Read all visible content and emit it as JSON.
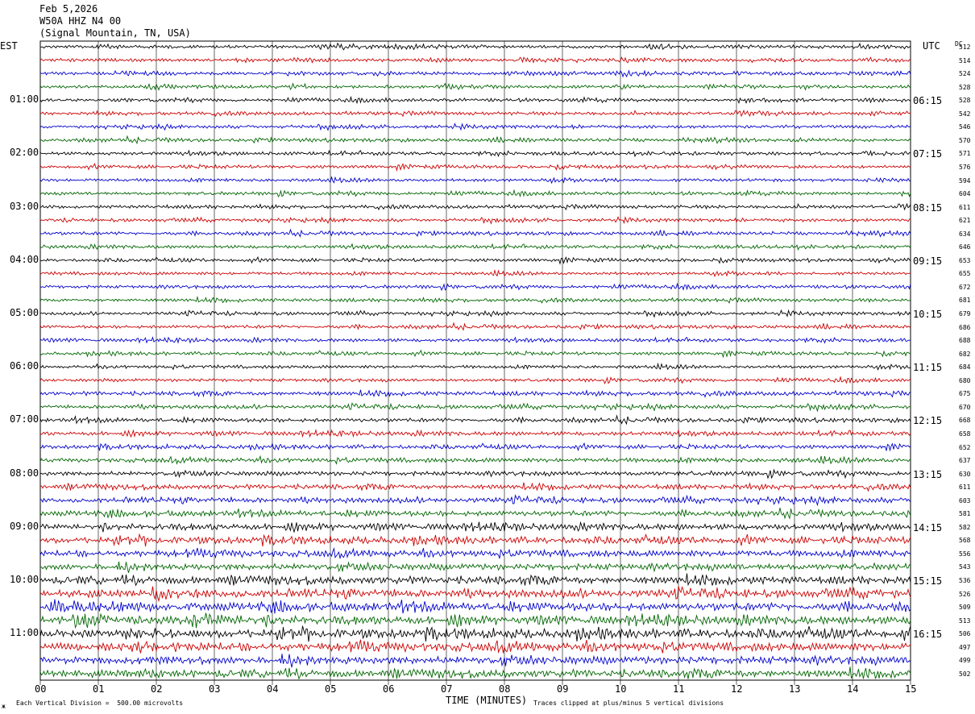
{
  "header": {
    "date": "Feb 5,2026",
    "station": "W50A HHZ N4 00",
    "location": "(Signal Mountain, TN, USA)"
  },
  "left_axis_title": "EST",
  "right_axis_title": "UTC",
  "dc_title": "DC",
  "footer": {
    "scale_note": "Each Vertical Division =  500.00 microvolts",
    "clip_note": "Traces clipped at plus/minus 5 vertical divisions",
    "corner_mark": "ж"
  },
  "colors": {
    "trace_cycle": [
      "#000000",
      "#cc0000",
      "#0000cc",
      "#006600"
    ],
    "grid": "#000000"
  },
  "chart_data": {
    "type": "line",
    "title": "W50A HHZ N4 00",
    "xlabel": "TIME (MINUTES)",
    "x_ticks": [
      "00",
      "01",
      "02",
      "03",
      "04",
      "05",
      "06",
      "07",
      "08",
      "09",
      "10",
      "11",
      "12",
      "13",
      "14",
      "15"
    ],
    "xlim": [
      0,
      15
    ],
    "left_time_labels": [
      {
        "row": 4,
        "label": "01:00"
      },
      {
        "row": 8,
        "label": "02:00"
      },
      {
        "row": 12,
        "label": "03:00"
      },
      {
        "row": 16,
        "label": "04:00"
      },
      {
        "row": 20,
        "label": "05:00"
      },
      {
        "row": 24,
        "label": "06:00"
      },
      {
        "row": 28,
        "label": "07:00"
      },
      {
        "row": 32,
        "label": "08:00"
      },
      {
        "row": 36,
        "label": "09:00"
      },
      {
        "row": 40,
        "label": "10:00"
      },
      {
        "row": 44,
        "label": "11:00"
      }
    ],
    "right_time_labels": [
      {
        "row": 4,
        "label": "06:15"
      },
      {
        "row": 8,
        "label": "07:15"
      },
      {
        "row": 12,
        "label": "08:15"
      },
      {
        "row": 16,
        "label": "09:15"
      },
      {
        "row": 20,
        "label": "10:15"
      },
      {
        "row": 24,
        "label": "11:15"
      },
      {
        "row": 28,
        "label": "12:15"
      },
      {
        "row": 32,
        "label": "13:15"
      },
      {
        "row": 36,
        "label": "14:15"
      },
      {
        "row": 40,
        "label": "15:15"
      },
      {
        "row": 44,
        "label": "16:15"
      }
    ],
    "dc_offsets": [
      512,
      514,
      524,
      528,
      528,
      542,
      546,
      570,
      571,
      576,
      594,
      604,
      611,
      621,
      634,
      646,
      653,
      655,
      672,
      681,
      679,
      686,
      688,
      682,
      684,
      680,
      675,
      670,
      668,
      658,
      652,
      637,
      630,
      611,
      603,
      581,
      582,
      568,
      556,
      543,
      536,
      526,
      509,
      513,
      506,
      497,
      499,
      502
    ],
    "trace_amplitude_level": [
      0.25,
      0.25,
      0.25,
      0.25,
      0.25,
      0.25,
      0.25,
      0.25,
      0.25,
      0.25,
      0.25,
      0.25,
      0.25,
      0.25,
      0.25,
      0.25,
      0.25,
      0.25,
      0.25,
      0.25,
      0.25,
      0.25,
      0.25,
      0.25,
      0.25,
      0.25,
      0.3,
      0.3,
      0.3,
      0.3,
      0.3,
      0.35,
      0.35,
      0.35,
      0.4,
      0.4,
      0.45,
      0.5,
      0.5,
      0.5,
      0.55,
      0.6,
      0.6,
      0.6,
      0.65,
      0.65,
      0.6,
      0.55
    ]
  }
}
